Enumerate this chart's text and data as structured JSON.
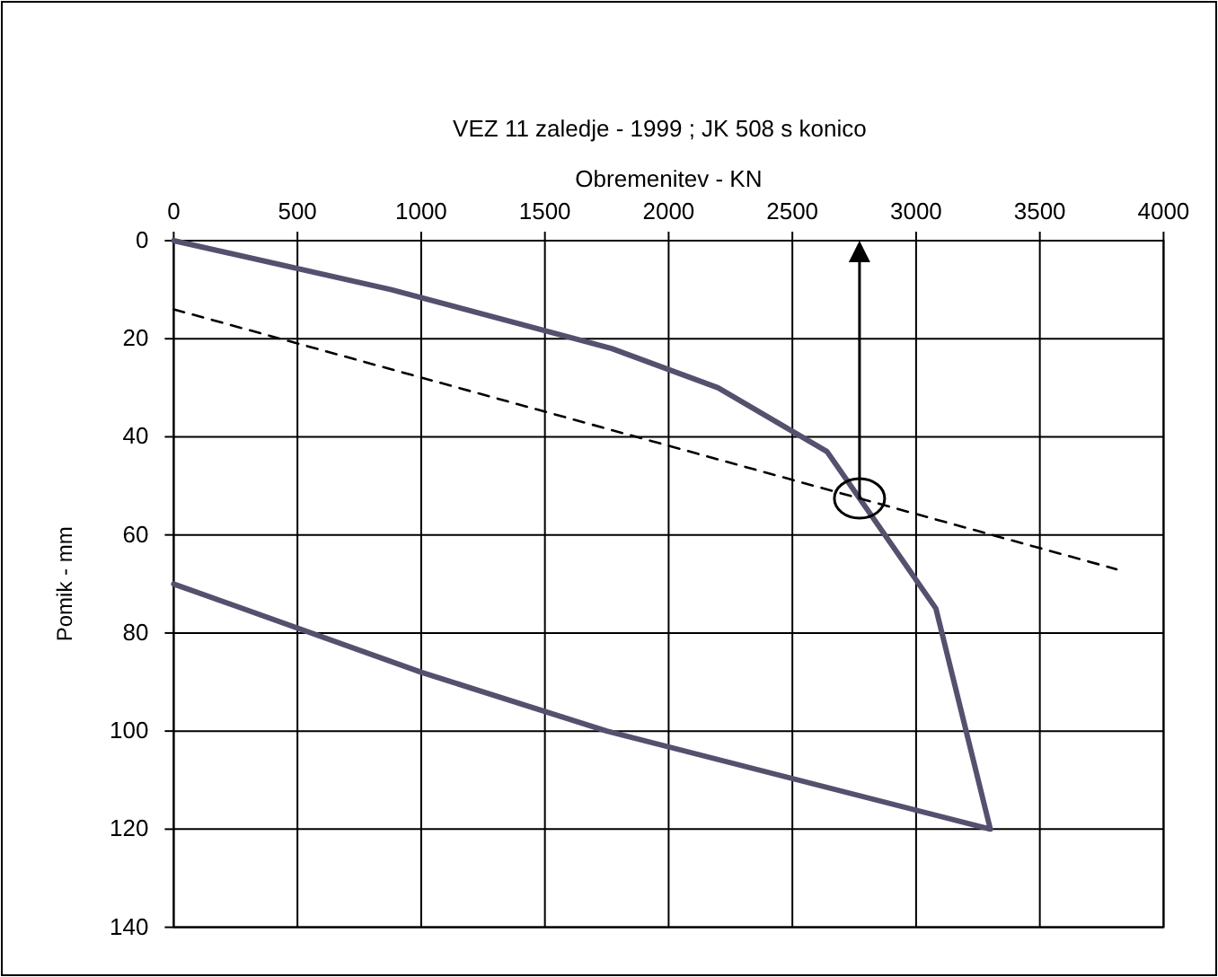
{
  "chart_data": {
    "type": "line",
    "title": "VEZ 11 zaledje - 1999 ; JK 508 s konico",
    "xlabel": "Obremenitev - KN",
    "ylabel": "Pomik - mm",
    "xlim": [
      0,
      4000
    ],
    "xticks": [
      0,
      500,
      1000,
      1500,
      2000,
      2500,
      3000,
      3500,
      4000
    ],
    "ylim": [
      140,
      0
    ],
    "yticks": [
      0,
      20,
      40,
      60,
      80,
      100,
      120,
      140
    ],
    "grid": true,
    "series": [
      {
        "color": "#56506e",
        "line_style": "solid",
        "x": [
          0,
          880,
          1770,
          2200,
          2640,
          3080,
          3300,
          1750,
          1000,
          0
        ],
        "values": [
          0,
          10,
          22,
          30,
          43,
          75,
          120,
          100,
          88,
          70
        ]
      },
      {
        "color": "#000000",
        "line_style": "dashed",
        "x": [
          0,
          3810
        ],
        "values": [
          14,
          67
        ]
      }
    ]
  }
}
